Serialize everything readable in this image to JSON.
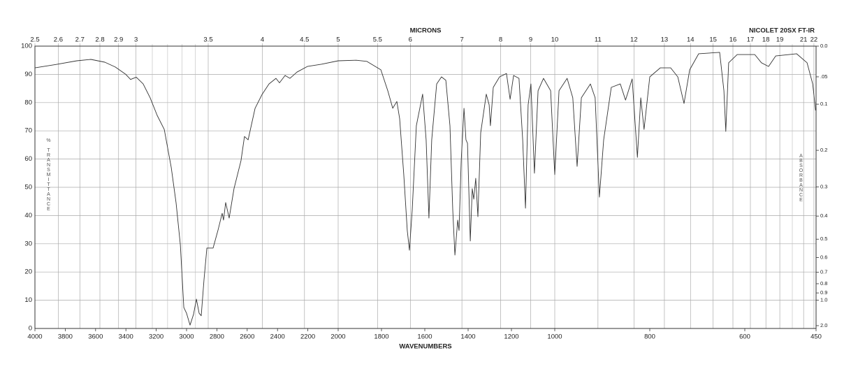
{
  "chart_data": {
    "type": "line",
    "title": "NICOLET 20SX FT-IR",
    "x_label": "WAVENUMBERS",
    "x2_label": "MICRONS",
    "y_label": "% TRANSMITTANCE",
    "y2_label": "ABSORBANCE",
    "color": "#333333",
    "grid": true,
    "xlim": [
      4000,
      450
    ],
    "x_scale_breaks": [
      2000,
      1000
    ],
    "xticks": [
      4000,
      3800,
      3600,
      3400,
      3200,
      3000,
      2800,
      2600,
      2400,
      2200,
      2000,
      1800,
      1600,
      1400,
      1200,
      1000,
      800,
      600,
      450
    ],
    "x2ticks": [
      2.5,
      2.6,
      2.7,
      2.8,
      2.9,
      3,
      3.5,
      4,
      4.5,
      5,
      5.5,
      6,
      7,
      8,
      9,
      10,
      11,
      12,
      13,
      14,
      15,
      16,
      17,
      18,
      19,
      21,
      22
    ],
    "x2_minor": [
      3.1,
      3.2,
      3.3,
      3.4,
      20
    ],
    "ylim": [
      0,
      100
    ],
    "yticks": [
      0,
      10,
      20,
      30,
      40,
      50,
      60,
      70,
      80,
      90,
      100
    ],
    "y2ticks": [
      {
        "value": 0,
        "label": "0.0"
      },
      {
        "value": 0.05,
        "label": ".05"
      },
      0.1,
      0.2,
      0.3,
      0.4,
      0.5,
      0.6,
      0.7,
      0.8,
      0.9,
      {
        "value": 1,
        "label": "1.0"
      },
      {
        "value": 2,
        "label": "2.0"
      }
    ],
    "x": [
      4000,
      3862,
      3724,
      3631,
      3539,
      3470,
      3401,
      3369,
      3332,
      3286,
      3240,
      3194,
      3147,
      3101,
      3069,
      3041,
      3018,
      3000,
      2977,
      2954,
      2935,
      2917,
      2903,
      2885,
      2866,
      2825,
      2793,
      2765,
      2756,
      2742,
      2719,
      2687,
      2641,
      2618,
      2594,
      2548,
      2502,
      2456,
      2410,
      2387,
      2350,
      2318,
      2272,
      2203,
      2111,
      2000,
      1916,
      1868,
      1803,
      1771,
      1748,
      1729,
      1716,
      1697,
      1681,
      1671,
      1658,
      1639,
      1610,
      1594,
      1581,
      1568,
      1545,
      1523,
      1503,
      1484,
      1471,
      1461,
      1448,
      1442,
      1432,
      1419,
      1410,
      1403,
      1390,
      1381,
      1374,
      1365,
      1355,
      1342,
      1316,
      1303,
      1297,
      1284,
      1255,
      1223,
      1206,
      1190,
      1165,
      1148,
      1135,
      1123,
      1110,
      1094,
      1077,
      1052,
      1019,
      1000,
      991,
      974,
      962,
      953,
      944,
      925,
      915,
      906,
      897,
      881,
      862,
      851,
      837,
      826,
      819,
      812,
      800,
      778,
      756,
      741,
      728,
      716,
      697,
      653,
      644,
      640,
      634,
      616,
      579,
      565,
      550,
      535,
      491,
      469,
      457,
      451
    ],
    "values": [
      92.3,
      93.5,
      94.8,
      95.3,
      94.3,
      92.6,
      90,
      88.2,
      89,
      86.6,
      81.7,
      75.5,
      70.5,
      57,
      44.5,
      29.7,
      7.4,
      5.4,
      1.2,
      5,
      10.4,
      5.4,
      4.5,
      17.3,
      28.5,
      28.5,
      34.7,
      40.8,
      38.4,
      44.6,
      39.1,
      49.5,
      59.4,
      68,
      66.8,
      78,
      82.9,
      86.6,
      88.6,
      87,
      89.6,
      88.6,
      90.8,
      92.8,
      93.6,
      94.8,
      95,
      94.6,
      91.6,
      84.2,
      78,
      80.4,
      74.3,
      54.5,
      34.7,
      27.7,
      42,
      71.8,
      83,
      66.8,
      39.1,
      66.8,
      86.6,
      89.1,
      87.9,
      71.8,
      42,
      26,
      38.4,
      34.7,
      59.4,
      78,
      66.8,
      65.6,
      31,
      49.5,
      45.8,
      53.2,
      39.6,
      69.3,
      83,
      79.2,
      71.8,
      85.4,
      89.1,
      90.3,
      81.2,
      89.6,
      88.6,
      66.8,
      42.6,
      79.2,
      86.6,
      55,
      84.2,
      88.6,
      84.2,
      54.5,
      84.2,
      88.6,
      81.7,
      57.4,
      81.7,
      86.6,
      81.7,
      46.5,
      66.8,
      85.4,
      86.6,
      80.9,
      88.4,
      60.6,
      81.7,
      70.5,
      89.1,
      92.3,
      92.3,
      89.1,
      79.7,
      91.6,
      97.3,
      97.8,
      84.2,
      69.8,
      94.1,
      97,
      97,
      94.1,
      92.8,
      96.5,
      97.3,
      94.1,
      86.6,
      77.2
    ]
  }
}
